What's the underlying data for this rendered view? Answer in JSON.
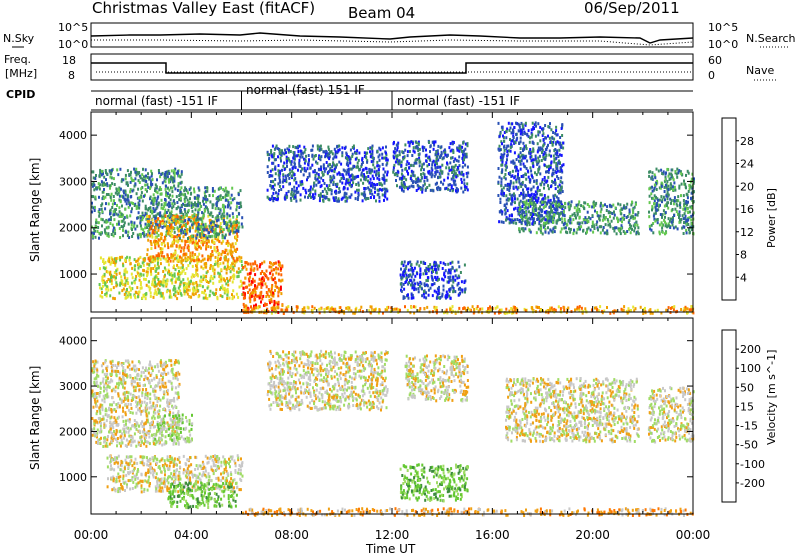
{
  "header": {
    "title": "Christmas Valley East (fitACF)",
    "beam": "Beam 04",
    "date": "06/Sep/2011"
  },
  "status_panels": {
    "nsky_label": "N.Sky",
    "nsearch_label": "N.Search",
    "freq_label_line1": "Freq.",
    "freq_label_line2": "[MHz]",
    "nave_label": "Nave",
    "cpid_label": "CPID",
    "noise_ticks_left": [
      "10^5",
      "10^0"
    ],
    "noise_ticks_right": [
      "10^5",
      "10^0"
    ],
    "freq_ticks_left": [
      "18",
      "8"
    ],
    "freq_ticks_right": [
      "60",
      "0"
    ],
    "cpid_segments": [
      {
        "start": 0.0,
        "end": 6.0,
        "label": "normal (fast) -151 IF"
      },
      {
        "start": 6.0,
        "end": 12.0,
        "label": "normal (fast) 151 IF"
      },
      {
        "start": 12.0,
        "end": 24.0,
        "label": "normal (fast) -151 IF"
      }
    ]
  },
  "chart_data": [
    {
      "type": "heatmap",
      "name_shown": "Power",
      "xlabel": "",
      "ylabel": "Slant Range [km]",
      "xlim": [
        0,
        24
      ],
      "ylim": [
        180,
        4500
      ],
      "yticks": [
        1000,
        2000,
        3000,
        4000
      ],
      "colorbar": {
        "label": "Power [dB]",
        "ticks": [
          "4",
          "8",
          "12",
          "16",
          "20",
          "24",
          "28"
        ],
        "colors": [
          "#1414ff",
          "#2850b4",
          "#3c8c64",
          "#64c850",
          "#e6e632",
          "#f0a000",
          "#ff6400",
          "#ff0000"
        ]
      },
      "regions": [
        {
          "t0": 0.0,
          "t1": 3.6,
          "r0": 1800,
          "r1": 3300,
          "level": 2
        },
        {
          "t0": 0.3,
          "t1": 6.0,
          "r0": 500,
          "r1": 1400,
          "level": 4
        },
        {
          "t0": 2.2,
          "t1": 5.8,
          "r0": 1300,
          "r1": 2300,
          "level": 5
        },
        {
          "t0": 3.5,
          "t1": 6.0,
          "r0": 1800,
          "r1": 2900,
          "level": 2
        },
        {
          "t0": 6.0,
          "t1": 7.6,
          "r0": 200,
          "r1": 1300,
          "level": 6
        },
        {
          "t0": 7.0,
          "t1": 11.8,
          "r0": 2600,
          "r1": 3800,
          "level": 1
        },
        {
          "t0": 12.0,
          "t1": 15.0,
          "r0": 2800,
          "r1": 3900,
          "level": 1
        },
        {
          "t0": 12.3,
          "t1": 14.9,
          "r0": 500,
          "r1": 1300,
          "level": 1
        },
        {
          "t0": 16.2,
          "t1": 18.8,
          "r0": 2100,
          "r1": 4300,
          "level": 1
        },
        {
          "t0": 17.0,
          "t1": 21.8,
          "r0": 1900,
          "r1": 2600,
          "level": 2
        },
        {
          "t0": 22.2,
          "t1": 24.0,
          "r0": 1900,
          "r1": 3300,
          "level": 2
        },
        {
          "t0": 6.0,
          "t1": 24.0,
          "r0": 180,
          "r1": 330,
          "level": 5
        }
      ]
    },
    {
      "type": "heatmap",
      "name_shown": "Velocity",
      "xlabel": "Time UT",
      "ylabel": "Slant Range [km]",
      "xlim": [
        0,
        24
      ],
      "ylim": [
        180,
        4500
      ],
      "yticks": [
        1000,
        2000,
        3000,
        4000
      ],
      "xticks": [
        "00:00",
        "04:00",
        "08:00",
        "12:00",
        "16:00",
        "20:00",
        "00:00"
      ],
      "colorbar": {
        "label": "Velocity [m s^-1]",
        "ticks": [
          "200",
          "100",
          "50",
          "15",
          "-15",
          "-50",
          "-100",
          "-200"
        ],
        "colors": [
          "#1432c8",
          "#3c8c3c",
          "#64c832",
          "#a0dc64",
          "#c8c8c8",
          "#f0a014",
          "#ff7800",
          "#ff3c00",
          "#e60000"
        ]
      },
      "regions": [
        {
          "t0": 0.0,
          "t1": 3.5,
          "r0": 1700,
          "r1": 3600,
          "level": 4
        },
        {
          "t0": 0.6,
          "t1": 6.0,
          "r0": 700,
          "r1": 1500,
          "level": 4
        },
        {
          "t0": 2.5,
          "t1": 4.0,
          "r0": 1800,
          "r1": 2400,
          "level": 3
        },
        {
          "t0": 3.0,
          "t1": 5.8,
          "r0": 350,
          "r1": 900,
          "level": 2
        },
        {
          "t0": 7.0,
          "t1": 11.8,
          "r0": 2500,
          "r1": 3800,
          "level": 4
        },
        {
          "t0": 12.3,
          "t1": 15.0,
          "r0": 500,
          "r1": 1300,
          "level": 2
        },
        {
          "t0": 12.5,
          "t1": 15.0,
          "r0": 2700,
          "r1": 3700,
          "level": 4
        },
        {
          "t0": 16.5,
          "t1": 21.8,
          "r0": 1800,
          "r1": 3200,
          "level": 4
        },
        {
          "t0": 22.2,
          "t1": 24.0,
          "r0": 1800,
          "r1": 3000,
          "level": 4
        },
        {
          "t0": 6.0,
          "t1": 24.0,
          "r0": 180,
          "r1": 330,
          "level": 5
        }
      ]
    }
  ]
}
